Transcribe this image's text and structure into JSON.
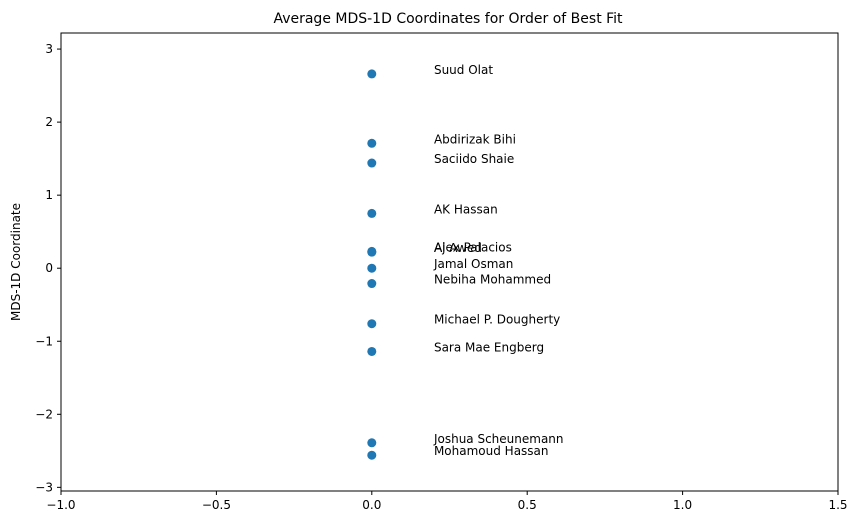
{
  "chart_data": {
    "type": "scatter",
    "title": "Average MDS-1D Coordinates for Order of Best Fit",
    "xlabel": "",
    "ylabel": "MDS-1D Coordinate",
    "xlim": [
      -1.0,
      1.5
    ],
    "ylim": [
      -3.05,
      3.22
    ],
    "xticks": [
      -1.0,
      -0.5,
      0.0,
      0.5,
      1.0,
      1.5
    ],
    "xtick_labels": [
      "−1.0",
      "−0.5",
      "0.0",
      "0.5",
      "1.0",
      "1.5"
    ],
    "yticks": [
      -3,
      -2,
      -1,
      0,
      1,
      2,
      3
    ],
    "ytick_labels": [
      "−3",
      "−2",
      "−1",
      "0",
      "1",
      "2",
      "3"
    ],
    "grid": false,
    "marker_color": "#1f77b4",
    "label_x_offset": 0.2,
    "points": [
      {
        "name": "Suud Olat",
        "x": 0.0,
        "y": 2.66
      },
      {
        "name": "Abdirizak Bihi",
        "x": 0.0,
        "y": 1.71
      },
      {
        "name": "Saciido Shaie",
        "x": 0.0,
        "y": 1.44
      },
      {
        "name": "AK Hassan",
        "x": 0.0,
        "y": 0.75
      },
      {
        "name": "Alex Palacios",
        "x": 0.0,
        "y": 0.23
      },
      {
        "name": "Aj Awed",
        "x": 0.0,
        "y": 0.22
      },
      {
        "name": "Jamal Osman",
        "x": 0.0,
        "y": 0.0
      },
      {
        "name": "Nebiha Mohammed",
        "x": 0.0,
        "y": -0.21
      },
      {
        "name": "Michael P. Dougherty",
        "x": 0.0,
        "y": -0.76
      },
      {
        "name": "Sara Mae Engberg",
        "x": 0.0,
        "y": -1.14
      },
      {
        "name": "Joshua Scheunemann",
        "x": 0.0,
        "y": -2.39
      },
      {
        "name": "Mohamoud Hassan",
        "x": 0.0,
        "y": -2.56
      }
    ]
  }
}
